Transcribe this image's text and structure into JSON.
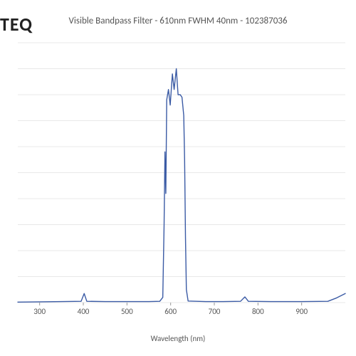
{
  "brand": "TEQ",
  "title": "Visible Bandpass Filter - 610nm FWHM 40nm - 102387036",
  "x_axis_label": "Wavelength (nm)",
  "chart": {
    "type": "line",
    "xlim": [
      250,
      1000
    ],
    "ylim": [
      0,
      100
    ],
    "x_ticks": [
      300,
      400,
      500,
      600,
      700,
      800,
      900
    ],
    "grid_lines_y": 10,
    "line_color": "#3b5ba5",
    "line_width": 1.4,
    "grid_color": "#e8e8e8",
    "background_color": "#ffffff",
    "tick_fontsize": 11,
    "label_fontsize": 11,
    "title_fontsize": 13,
    "series": [
      {
        "x": 250,
        "y": 0.2
      },
      {
        "x": 300,
        "y": 0.3
      },
      {
        "x": 350,
        "y": 0.4
      },
      {
        "x": 395,
        "y": 0.5
      },
      {
        "x": 402,
        "y": 3.5
      },
      {
        "x": 408,
        "y": 0.5
      },
      {
        "x": 450,
        "y": 0.4
      },
      {
        "x": 500,
        "y": 0.4
      },
      {
        "x": 550,
        "y": 0.4
      },
      {
        "x": 575,
        "y": 0.5
      },
      {
        "x": 582,
        "y": 2.0
      },
      {
        "x": 585,
        "y": 30.0
      },
      {
        "x": 587,
        "y": 58.0
      },
      {
        "x": 589,
        "y": 42.0
      },
      {
        "x": 591,
        "y": 78.0
      },
      {
        "x": 595,
        "y": 82.0
      },
      {
        "x": 599,
        "y": 76.0
      },
      {
        "x": 604,
        "y": 88.0
      },
      {
        "x": 608,
        "y": 82.0
      },
      {
        "x": 613,
        "y": 90.0
      },
      {
        "x": 617,
        "y": 80.0
      },
      {
        "x": 622,
        "y": 80.0
      },
      {
        "x": 626,
        "y": 79.0
      },
      {
        "x": 630,
        "y": 72.0
      },
      {
        "x": 632,
        "y": 55.0
      },
      {
        "x": 634,
        "y": 25.0
      },
      {
        "x": 636,
        "y": 5.0
      },
      {
        "x": 640,
        "y": 0.6
      },
      {
        "x": 680,
        "y": 0.4
      },
      {
        "x": 720,
        "y": 0.4
      },
      {
        "x": 760,
        "y": 0.5
      },
      {
        "x": 770,
        "y": 2.2
      },
      {
        "x": 778,
        "y": 0.5
      },
      {
        "x": 830,
        "y": 0.4
      },
      {
        "x": 900,
        "y": 0.4
      },
      {
        "x": 960,
        "y": 0.5
      },
      {
        "x": 980,
        "y": 1.8
      },
      {
        "x": 1000,
        "y": 3.5
      }
    ]
  }
}
